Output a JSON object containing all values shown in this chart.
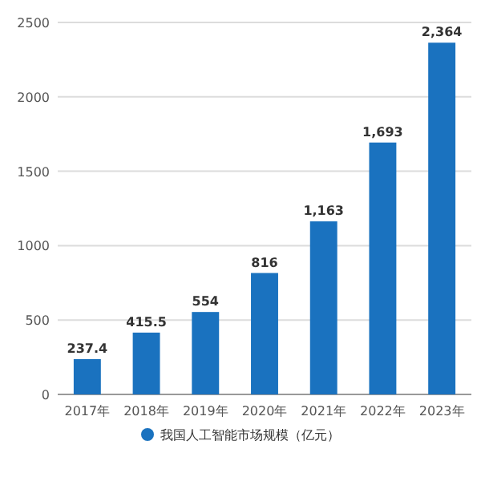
{
  "chart_data": {
    "type": "bar",
    "categories": [
      "2017年",
      "2018年",
      "2019年",
      "2020年",
      "2021年",
      "2022年",
      "2023年"
    ],
    "series": [
      {
        "name": "我国人工智能市场规模（亿元）",
        "color": "#1a72bf",
        "values": [
          237.4,
          415.5,
          554,
          816,
          1163,
          1693,
          2364
        ],
        "value_labels": [
          "237.4",
          "415.5",
          "554",
          "816",
          "1,163",
          "1,693",
          "2,364"
        ]
      }
    ],
    "ylim": [
      0,
      2500
    ],
    "yticks": [
      0,
      500,
      1000,
      1500,
      2000,
      2500
    ],
    "grid": "y",
    "legend": "bottom"
  }
}
